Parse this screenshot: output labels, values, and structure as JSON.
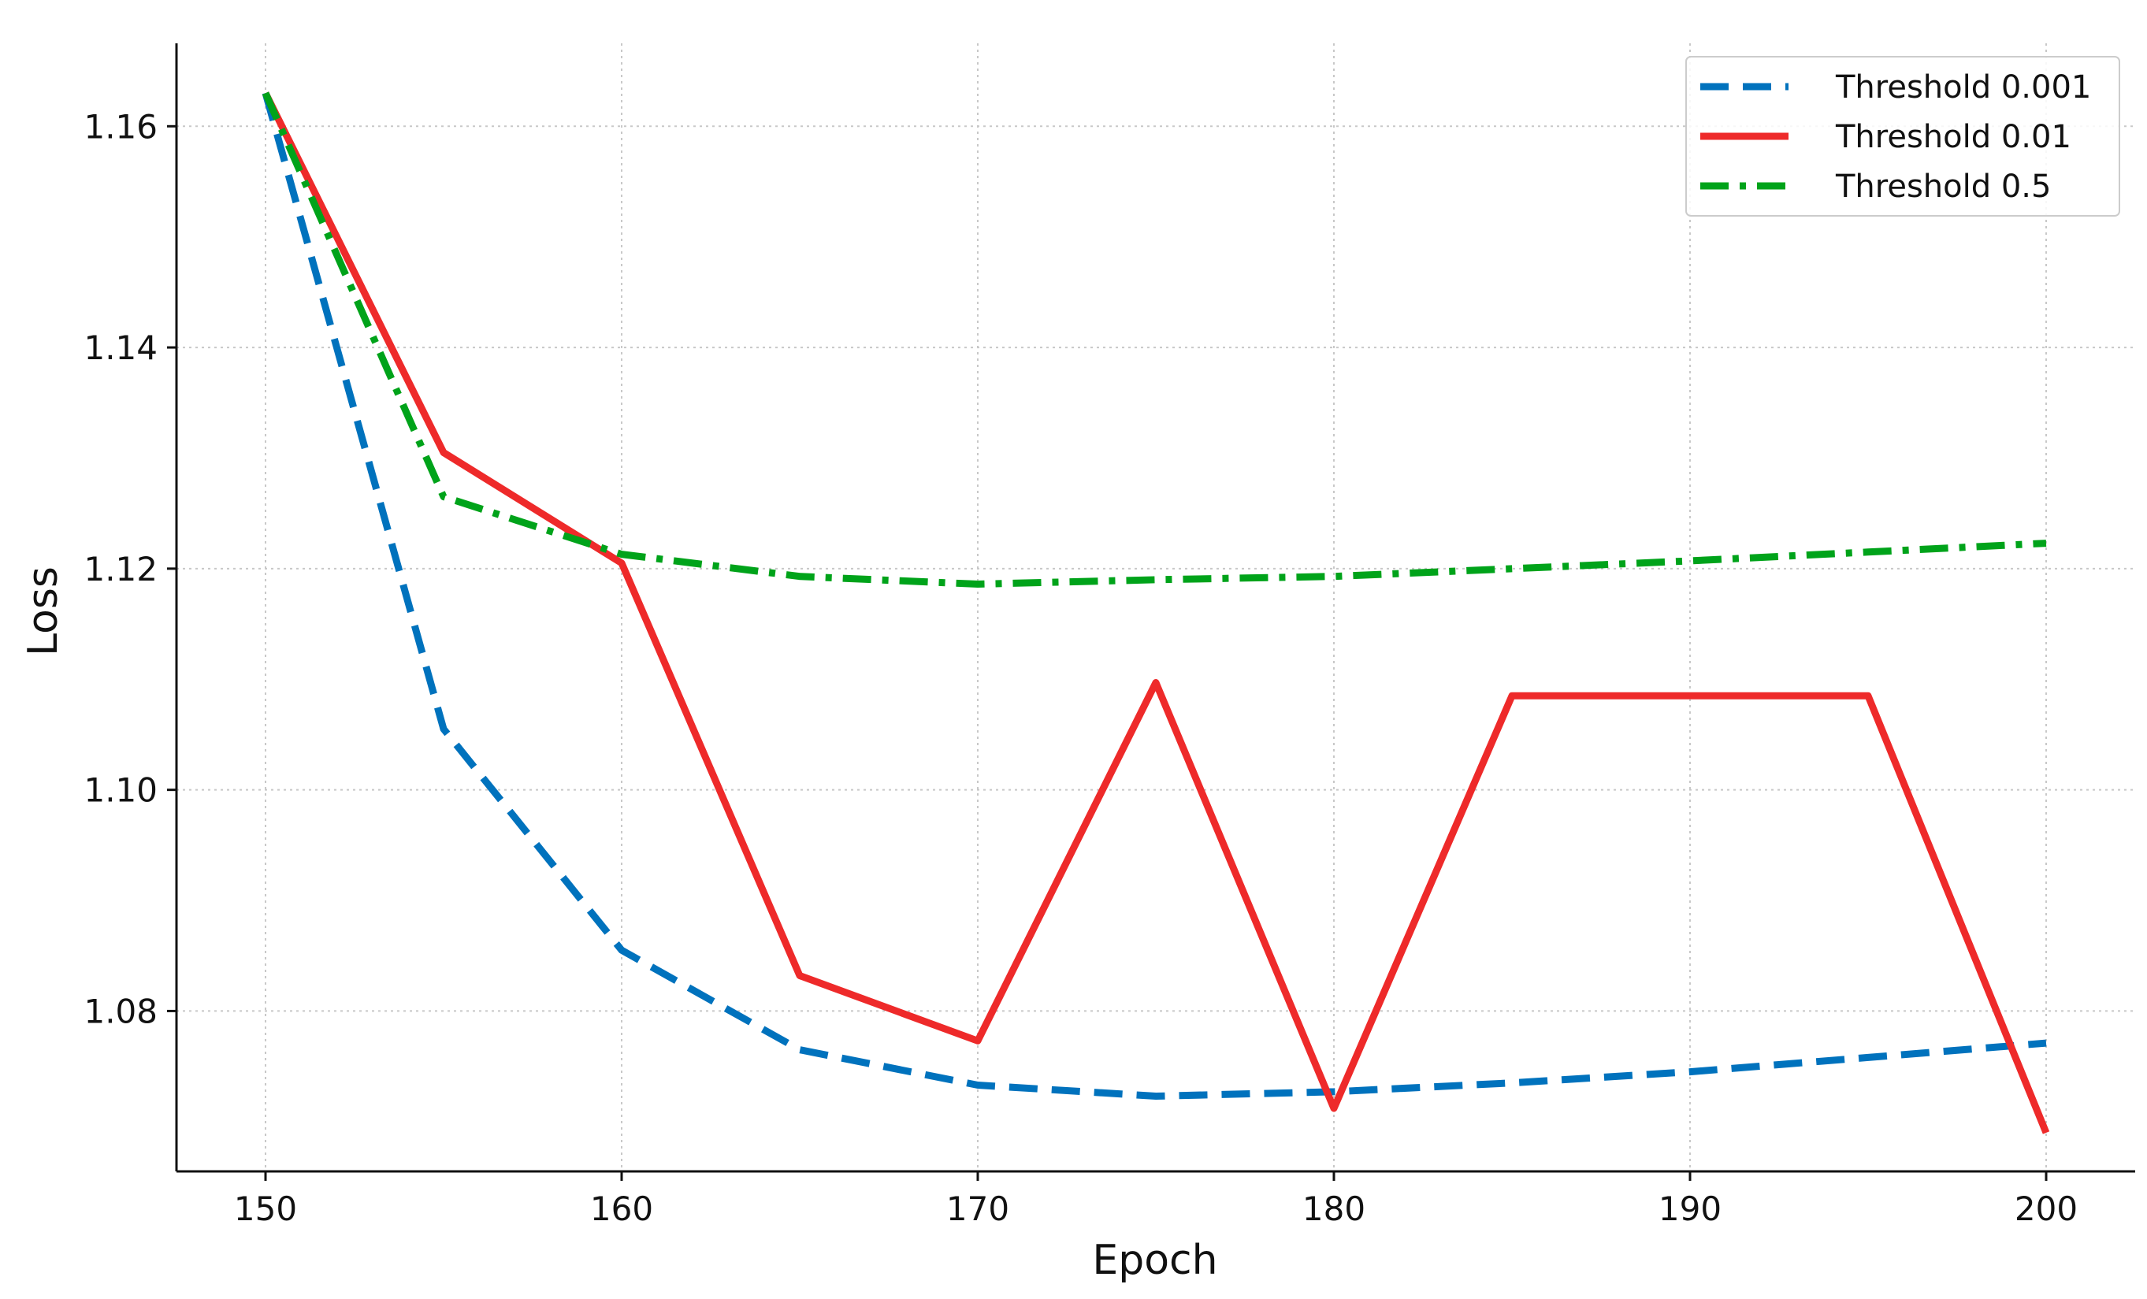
{
  "chart_data": {
    "type": "line",
    "xlabel": "Epoch",
    "ylabel": "Loss",
    "xlim": [
      147.5,
      202.5
    ],
    "ylim": [
      1.0655,
      1.1675
    ],
    "xticks": [
      150,
      160,
      170,
      180,
      190,
      200
    ],
    "xtick_labels": [
      "150",
      "160",
      "170",
      "180",
      "190",
      "200"
    ],
    "yticks": [
      1.08,
      1.1,
      1.12,
      1.14,
      1.16
    ],
    "ytick_labels": [
      "1.08",
      "1.10",
      "1.12",
      "1.14",
      "1.16"
    ],
    "grid": true,
    "legend_position": "top-right",
    "x": [
      150,
      155,
      160,
      165,
      170,
      175,
      180,
      185,
      190,
      195,
      200
    ],
    "series": [
      {
        "name": "Threshold 0.001",
        "color": "#0072BD",
        "line_style": "dashed",
        "values": [
          1.163,
          1.1055,
          1.0855,
          1.0765,
          1.0733,
          1.0723,
          1.0727,
          1.0735,
          1.0745,
          1.0758,
          1.0771
        ]
      },
      {
        "name": "Threshold 0.01",
        "color": "#EE2A2A",
        "line_style": "solid",
        "values": [
          1.163,
          1.1305,
          1.1205,
          1.0832,
          1.0773,
          1.1097,
          1.0712,
          1.1085,
          1.1085,
          1.1085,
          1.069
        ]
      },
      {
        "name": "Threshold 0.5",
        "color": "#00A31A",
        "line_style": "dashdot",
        "values": [
          1.163,
          1.1265,
          1.1213,
          1.1193,
          1.1186,
          1.119,
          1.1193,
          1.12,
          1.1207,
          1.1215,
          1.1223
        ]
      }
    ]
  }
}
